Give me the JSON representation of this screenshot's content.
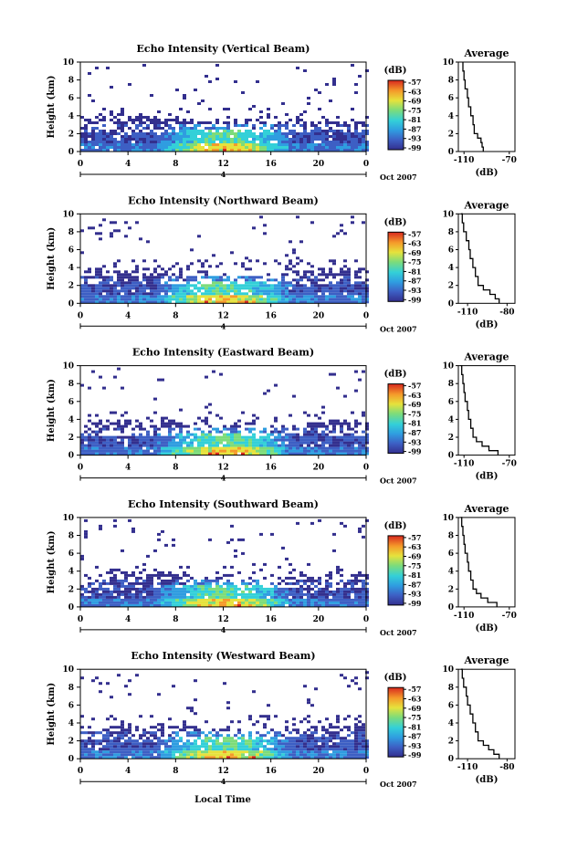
{
  "figure": {
    "x_label": "Local Time",
    "date_label": "Oct 2007",
    "secondary_axis_label": "4",
    "colorbar_unit": "(dB)",
    "average_title": "Average",
    "average_xlabel": "(dB)"
  },
  "chart_data": [
    {
      "type": "heatmap",
      "title": "Echo Intensity (Vertical Beam)",
      "ylabel": "Height (km)",
      "x_ticks": [
        "0",
        "4",
        "8",
        "12",
        "16",
        "20",
        "0"
      ],
      "y_ticks": [
        "0",
        "2",
        "4",
        "6",
        "8",
        "10"
      ],
      "xlim": [
        0,
        24
      ],
      "ylim": [
        0,
        10
      ],
      "colorbar_ticks": [
        "-57",
        "-63",
        "-69",
        "-75",
        "-81",
        "-87",
        "-93",
        "-99"
      ],
      "colorbar_range": [
        -99,
        -57
      ],
      "average": {
        "title": "Average",
        "xlabel": "(dB)",
        "x_ticks": [
          "-110",
          "-70"
        ],
        "xlim": [
          -115,
          -65
        ],
        "y_ticks": [
          "0",
          "2",
          "4",
          "6",
          "8",
          "10"
        ],
        "profile": [
          [
            -93,
            0
          ],
          [
            -94,
            0.5
          ],
          [
            -95,
            1
          ],
          [
            -98,
            1.5
          ],
          [
            -101,
            2
          ],
          [
            -102,
            3
          ],
          [
            -104,
            4
          ],
          [
            -106,
            5
          ],
          [
            -107,
            6
          ],
          [
            -109,
            7
          ],
          [
            -110,
            8
          ],
          [
            -111,
            9
          ],
          [
            -111,
            10
          ]
        ]
      }
    },
    {
      "type": "heatmap",
      "title": "Echo Intensity (Northward Beam)",
      "ylabel": "Height (km)",
      "x_ticks": [
        "0",
        "4",
        "8",
        "12",
        "16",
        "20",
        "0"
      ],
      "y_ticks": [
        "0",
        "2",
        "4",
        "6",
        "8",
        "10"
      ],
      "xlim": [
        0,
        24
      ],
      "ylim": [
        0,
        10
      ],
      "colorbar_ticks": [
        "-57",
        "-63",
        "-69",
        "-75",
        "-81",
        "-87",
        "-93",
        "-99"
      ],
      "colorbar_range": [
        -99,
        -57
      ],
      "average": {
        "title": "Average",
        "xlabel": "(dB)",
        "x_ticks": [
          "-110",
          "-80"
        ],
        "xlim": [
          -117,
          -74
        ],
        "y_ticks": [
          "0",
          "2",
          "4",
          "6",
          "8",
          "10"
        ],
        "profile": [
          [
            -86,
            0
          ],
          [
            -89,
            0.5
          ],
          [
            -93,
            1
          ],
          [
            -98,
            1.5
          ],
          [
            -102,
            2
          ],
          [
            -104,
            3
          ],
          [
            -106,
            4
          ],
          [
            -108,
            5
          ],
          [
            -109,
            6
          ],
          [
            -111,
            7
          ],
          [
            -113,
            8
          ],
          [
            -114,
            9
          ],
          [
            -115,
            10
          ]
        ]
      }
    },
    {
      "type": "heatmap",
      "title": "Echo Intensity (Eastward Beam)",
      "ylabel": "Height (km)",
      "x_ticks": [
        "0",
        "4",
        "8",
        "12",
        "16",
        "20",
        "0"
      ],
      "y_ticks": [
        "0",
        "2",
        "4",
        "6",
        "8",
        "10"
      ],
      "xlim": [
        0,
        24
      ],
      "ylim": [
        0,
        10
      ],
      "colorbar_ticks": [
        "-57",
        "-63",
        "-69",
        "-75",
        "-81",
        "-87",
        "-93",
        "-99"
      ],
      "colorbar_range": [
        -99,
        -57
      ],
      "average": {
        "title": "Average",
        "xlabel": "(dB)",
        "x_ticks": [
          "-110",
          "-70"
        ],
        "xlim": [
          -115,
          -65
        ],
        "y_ticks": [
          "0",
          "2",
          "4",
          "6",
          "8",
          "10"
        ],
        "profile": [
          [
            -80,
            0
          ],
          [
            -88,
            0.5
          ],
          [
            -94,
            1
          ],
          [
            -99,
            1.5
          ],
          [
            -102,
            2
          ],
          [
            -104,
            3
          ],
          [
            -106,
            4
          ],
          [
            -107,
            5
          ],
          [
            -109,
            6
          ],
          [
            -110,
            7
          ],
          [
            -111,
            8
          ],
          [
            -112,
            9
          ],
          [
            -113,
            10
          ]
        ]
      }
    },
    {
      "type": "heatmap",
      "title": "Echo Intensity (Southward Beam)",
      "ylabel": "Height (km)",
      "x_ticks": [
        "0",
        "4",
        "8",
        "12",
        "16",
        "20",
        "0"
      ],
      "y_ticks": [
        "0",
        "2",
        "4",
        "6",
        "8",
        "10"
      ],
      "xlim": [
        0,
        24
      ],
      "ylim": [
        0,
        10
      ],
      "colorbar_ticks": [
        "-57",
        "-63",
        "-69",
        "-75",
        "-81",
        "-87",
        "-93",
        "-99"
      ],
      "colorbar_range": [
        -99,
        -57
      ],
      "average": {
        "title": "Average",
        "xlabel": "(dB)",
        "x_ticks": [
          "-110",
          "-70"
        ],
        "xlim": [
          -115,
          -65
        ],
        "y_ticks": [
          "0",
          "2",
          "4",
          "6",
          "8",
          "10"
        ],
        "profile": [
          [
            -81,
            0
          ],
          [
            -89,
            0.5
          ],
          [
            -95,
            1
          ],
          [
            -99,
            1.5
          ],
          [
            -102,
            2
          ],
          [
            -104,
            3
          ],
          [
            -106,
            4
          ],
          [
            -107,
            5
          ],
          [
            -109,
            6
          ],
          [
            -110,
            7
          ],
          [
            -111,
            8
          ],
          [
            -112,
            9
          ],
          [
            -113,
            10
          ]
        ]
      }
    },
    {
      "type": "heatmap",
      "title": "Echo Intensity (Westward Beam)",
      "ylabel": "Height (km)",
      "x_ticks": [
        "0",
        "4",
        "8",
        "12",
        "16",
        "20",
        "0"
      ],
      "y_ticks": [
        "0",
        "2",
        "4",
        "6",
        "8",
        "10"
      ],
      "xlim": [
        0,
        24
      ],
      "ylim": [
        0,
        10
      ],
      "colorbar_ticks": [
        "-57",
        "-63",
        "-69",
        "-75",
        "-81",
        "-87",
        "-93",
        "-99"
      ],
      "colorbar_range": [
        -99,
        -57
      ],
      "average": {
        "title": "Average",
        "xlabel": "(dB)",
        "x_ticks": [
          "-110",
          "-80"
        ],
        "xlim": [
          -117,
          -74
        ],
        "y_ticks": [
          "0",
          "2",
          "4",
          "6",
          "8",
          "10"
        ],
        "profile": [
          [
            -86,
            0
          ],
          [
            -90,
            0.5
          ],
          [
            -94,
            1
          ],
          [
            -98,
            1.5
          ],
          [
            -102,
            2
          ],
          [
            -104,
            3
          ],
          [
            -106,
            4
          ],
          [
            -108,
            5
          ],
          [
            -110,
            6
          ],
          [
            -111,
            7
          ],
          [
            -113,
            8
          ],
          [
            -114,
            9
          ],
          [
            -115,
            10
          ]
        ]
      }
    }
  ]
}
